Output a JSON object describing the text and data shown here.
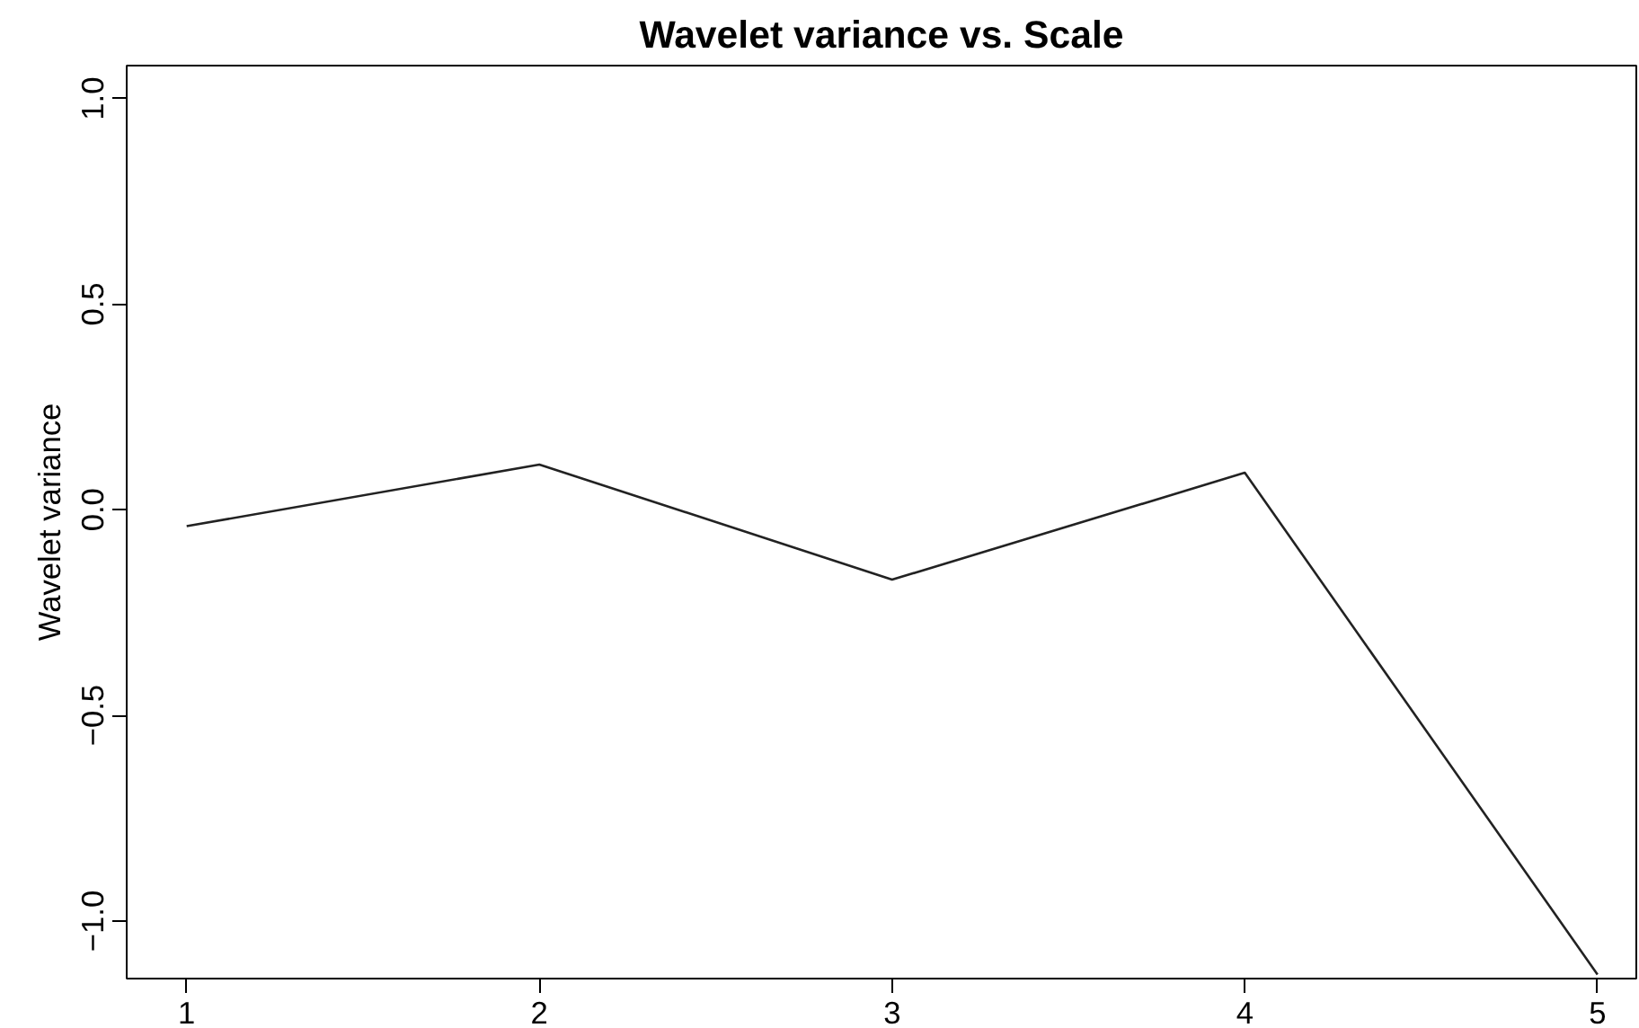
{
  "chart_data": {
    "type": "line",
    "title": "Wavelet variance vs. Scale",
    "ylabel": "Wavelet variance",
    "x": [
      1,
      2,
      3,
      4,
      5
    ],
    "values": [
      -0.04,
      0.11,
      -0.17,
      0.09,
      -1.13
    ],
    "color": "#222222",
    "xlim": [
      0.83,
      5.11
    ],
    "ylim": [
      -1.14,
      1.08
    ],
    "xticks": [
      1,
      2,
      3,
      4,
      5
    ],
    "yticks": [
      {
        "value": -1,
        "label": "−1.0"
      },
      {
        "value": -0.5,
        "label": "−0.5"
      },
      {
        "value": 0,
        "label": "0.0"
      },
      {
        "value": 0.5,
        "label": "0.5"
      },
      {
        "value": 1,
        "label": "1.0"
      }
    ],
    "grid": false,
    "marker": "none",
    "line_style": "solid"
  }
}
